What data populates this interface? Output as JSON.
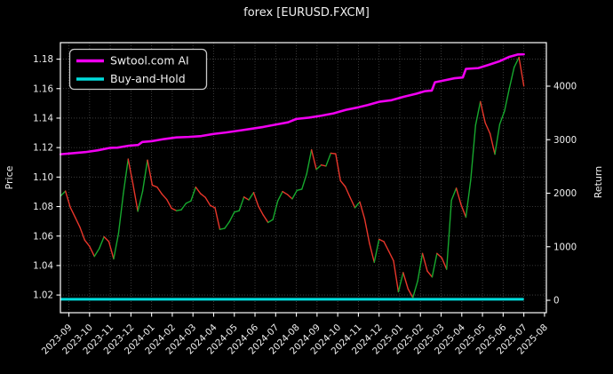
{
  "window": {
    "title": "forex [EURUSD.FXCM]"
  },
  "chart_data": {
    "type": "line",
    "title": "forex [EURUSD.FXCM]",
    "background": "#000000",
    "grid": true,
    "grid_color": "rgba(255,255,255,0.28)",
    "frame_color": "#ffffff",
    "text_color": "#efefef",
    "left_axis": {
      "label": "Price",
      "ticks": [
        1.02,
        1.04,
        1.06,
        1.08,
        1.1,
        1.12,
        1.14,
        1.16,
        1.18
      ],
      "range": [
        1.008,
        1.1912
      ]
    },
    "right_axis": {
      "label": "Return",
      "ticks": [
        0,
        1000,
        2000,
        3000,
        4000
      ],
      "range": [
        -232,
        4813
      ]
    },
    "x_axis": {
      "tick_labels": [
        "2023-09",
        "2023-10",
        "2023-11",
        "2023-12",
        "2024-01",
        "2024-02",
        "2024-03",
        "2024-04",
        "2024-05",
        "2024-06",
        "2024-07",
        "2024-08",
        "2024-09",
        "2024-10",
        "2024-11",
        "2024-12",
        "2025-01",
        "2025-02",
        "2025-03",
        "2025-04",
        "2025-05",
        "2025-06",
        "2025-07",
        "2025-08"
      ],
      "range_months": [
        -0.41,
        23.09
      ],
      "tick_rotation_deg": 45
    },
    "legend": {
      "position": "upper-left",
      "entries": [
        {
          "label": "Swtool.com AI",
          "color": "#f000f0"
        },
        {
          "label": "Buy-and-Hold",
          "color": "#00dcdc"
        }
      ]
    },
    "series": [
      {
        "name": "EURUSD price",
        "axis": "left",
        "style": "direction-colored",
        "up_color": "#17a82e",
        "down_color": "#e8362a",
        "line_width": 1.4,
        "x_start": -0.4,
        "x_end": 22.0,
        "values": [
          1.0872,
          1.0905,
          1.0795,
          1.0728,
          1.066,
          1.0572,
          1.053,
          1.0462,
          1.0515,
          1.0595,
          1.0562,
          1.0445,
          1.0618,
          1.0888,
          1.1122,
          1.0952,
          1.0768,
          1.0905,
          1.1115,
          1.0945,
          1.0932,
          1.0885,
          1.0848,
          1.0788,
          1.0772,
          1.0778,
          1.0822,
          1.0838,
          1.0932,
          1.0888,
          1.0862,
          1.0808,
          1.0792,
          1.0645,
          1.0652,
          1.0698,
          1.0762,
          1.0772,
          1.0865,
          1.0845,
          1.0895,
          1.0802,
          1.0742,
          1.0692,
          1.0712,
          1.0838,
          1.0902,
          1.0882,
          1.0852,
          1.091,
          1.0918,
          1.1022,
          1.1185,
          1.1052,
          1.1082,
          1.1075,
          1.1162,
          1.1158,
          1.0975,
          1.0935,
          1.0862,
          1.0792,
          1.0832,
          1.0718,
          1.0552,
          1.0422,
          1.0578,
          1.0562,
          1.0498,
          1.0432,
          1.0222,
          1.0352,
          1.0242,
          1.0182,
          1.0295,
          1.0482,
          1.0362,
          1.0322,
          1.0482,
          1.0452,
          1.0375,
          1.0842,
          1.0925,
          1.0812,
          1.0728,
          1.0982,
          1.1352,
          1.1512,
          1.1368,
          1.1295,
          1.1155,
          1.1358,
          1.1448,
          1.1602,
          1.1745,
          1.1812,
          1.1618
        ]
      },
      {
        "name": "Swtool.com AI",
        "axis": "right",
        "color": "#f000f0",
        "line_width": 2.6,
        "points": [
          [
            -0.4,
            2728
          ],
          [
            0.2,
            2748
          ],
          [
            0.8,
            2768
          ],
          [
            1.4,
            2802
          ],
          [
            2.0,
            2848
          ],
          [
            2.35,
            2852
          ],
          [
            2.9,
            2888
          ],
          [
            3.35,
            2902
          ],
          [
            3.55,
            2958
          ],
          [
            4.0,
            2972
          ],
          [
            4.6,
            3012
          ],
          [
            5.2,
            3042
          ],
          [
            5.8,
            3052
          ],
          [
            6.4,
            3068
          ],
          [
            7.0,
            3108
          ],
          [
            7.6,
            3135
          ],
          [
            8.2,
            3168
          ],
          [
            8.8,
            3202
          ],
          [
            9.4,
            3238
          ],
          [
            10.0,
            3282
          ],
          [
            10.6,
            3325
          ],
          [
            11.0,
            3388
          ],
          [
            11.6,
            3412
          ],
          [
            12.2,
            3448
          ],
          [
            12.8,
            3492
          ],
          [
            13.4,
            3558
          ],
          [
            14.0,
            3605
          ],
          [
            14.45,
            3648
          ],
          [
            15.0,
            3708
          ],
          [
            15.6,
            3738
          ],
          [
            16.2,
            3802
          ],
          [
            16.8,
            3858
          ],
          [
            17.2,
            3905
          ],
          [
            17.55,
            3918
          ],
          [
            17.7,
            4072
          ],
          [
            18.2,
            4112
          ],
          [
            18.65,
            4148
          ],
          [
            19.05,
            4162
          ],
          [
            19.2,
            4322
          ],
          [
            19.8,
            4338
          ],
          [
            20.3,
            4398
          ],
          [
            20.8,
            4462
          ],
          [
            21.3,
            4548
          ],
          [
            21.7,
            4592
          ],
          [
            22.0,
            4595
          ]
        ]
      },
      {
        "name": "Buy-and-Hold",
        "axis": "right",
        "color": "#00dcdc",
        "line_width": 3,
        "points": [
          [
            -0.4,
            18
          ],
          [
            22.0,
            18
          ]
        ]
      }
    ]
  }
}
